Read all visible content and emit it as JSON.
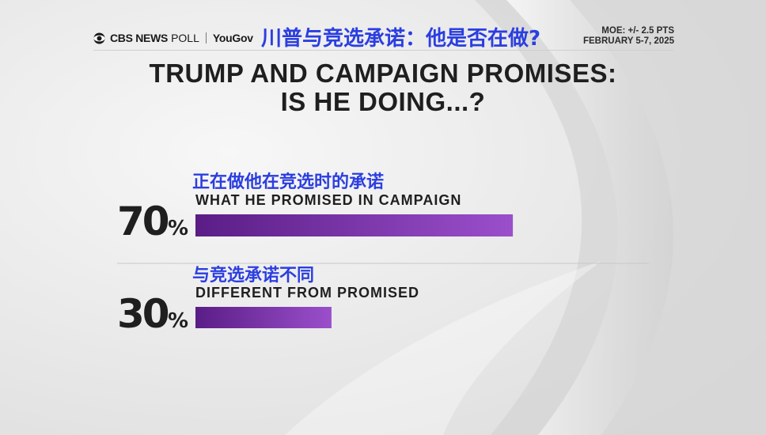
{
  "header": {
    "brand_cbs": "CBS NEWS",
    "brand_poll": "POLL",
    "brand_partner": "YouGov",
    "title_zh": "川普与竞选承诺：他是否在做?",
    "moe": "MOE: +/- 2.5 PTS",
    "dates": "FEBRUARY 5-7, 2025"
  },
  "title": {
    "line1": "TRUMP AND CAMPAIGN PROMISES:",
    "line2": "IS HE DOING...?"
  },
  "colors": {
    "accent_blue": "#2b3ee0",
    "bar_start": "#5a1d86",
    "bar_end": "#9b4fcb"
  },
  "chart_data": {
    "type": "bar",
    "orientation": "horizontal",
    "unit": "%",
    "xlim": [
      0,
      100
    ],
    "categories": [
      "WHAT HE PROMISED IN CAMPAIGN",
      "DIFFERENT FROM PROMISED"
    ],
    "categories_zh": [
      "正在做他在竞选时的承诺",
      "与竞选承诺不同"
    ],
    "values": [
      70,
      30
    ],
    "labels": [
      "70",
      "30"
    ]
  }
}
